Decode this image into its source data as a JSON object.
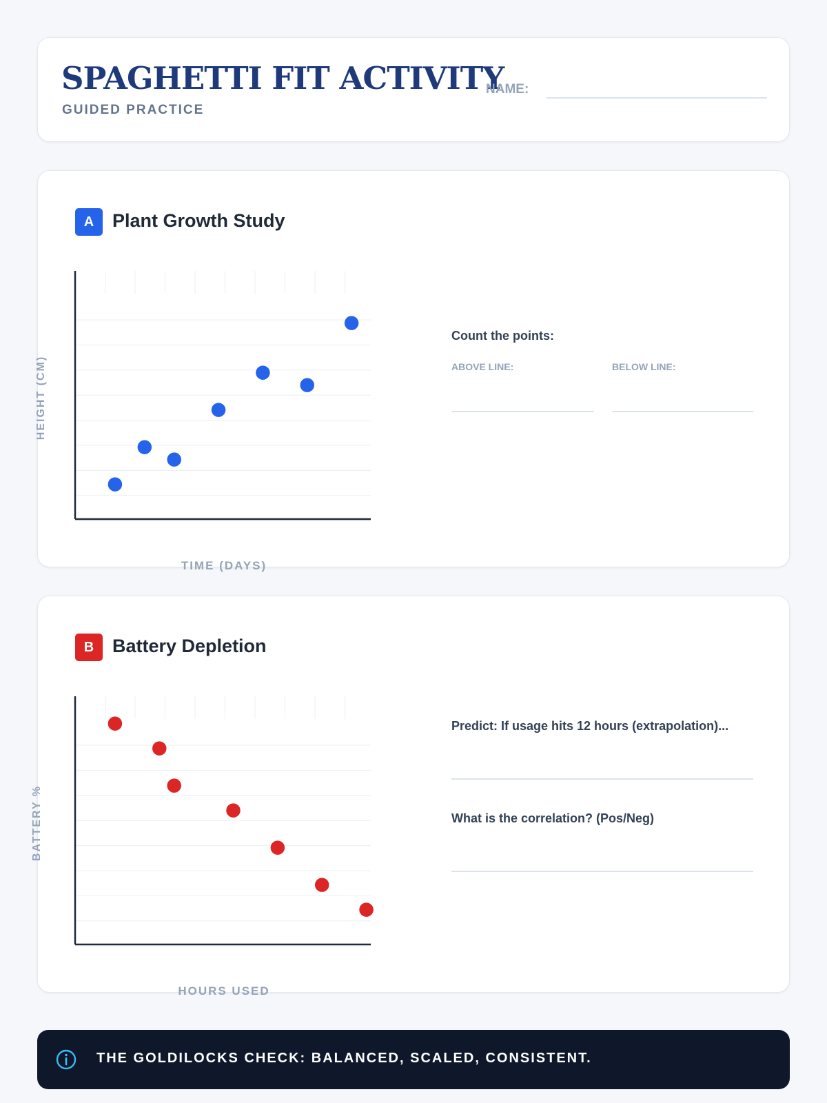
{
  "header": {
    "title": "SPAGHETTI FIT ACTIVITY",
    "subtitle": "GUIDED PRACTICE",
    "name_label": "NAME:"
  },
  "sections": [
    {
      "badge": "A",
      "badge_color": "#2563eb",
      "title": "Plant Growth Study",
      "count_prompt": "Count the points:",
      "above_label": "ABOVE LINE:",
      "below_label": "BELOW LINE:"
    },
    {
      "badge": "B",
      "badge_color": "#dc2626",
      "title": "Battery Depletion",
      "predict_prompt": "Predict: If usage hits 12 hours (extrapolation)...",
      "correlation_prompt": "What is the correlation? (Pos/Neg)"
    }
  ],
  "chart_data": [
    {
      "type": "scatter",
      "title": "Plant Growth Study",
      "xlabel": "TIME (DAYS)",
      "ylabel": "HEIGHT (CM)",
      "xlim": [
        0,
        10
      ],
      "ylim": [
        0,
        10
      ],
      "grid": true,
      "color": "#2563eb",
      "points": [
        [
          1.35,
          1.4
        ],
        [
          2.35,
          2.9
        ],
        [
          3.35,
          2.4
        ],
        [
          4.85,
          4.4
        ],
        [
          6.35,
          5.9
        ],
        [
          7.85,
          5.4
        ],
        [
          9.35,
          7.9
        ]
      ]
    },
    {
      "type": "scatter",
      "title": "Battery Depletion",
      "xlabel": "HOURS USED",
      "ylabel": "BATTERY %",
      "xlim": [
        0,
        10
      ],
      "ylim": [
        0,
        10
      ],
      "grid": true,
      "color": "#dc2626",
      "points": [
        [
          1.35,
          8.9
        ],
        [
          2.85,
          7.9
        ],
        [
          3.35,
          6.4
        ],
        [
          5.35,
          5.4
        ],
        [
          6.85,
          3.9
        ],
        [
          8.35,
          2.4
        ],
        [
          9.85,
          1.4
        ]
      ]
    }
  ],
  "footer": {
    "text": "THE GOLDILOCKS CHECK: BALANCED, SCALED, CONSISTENT."
  }
}
